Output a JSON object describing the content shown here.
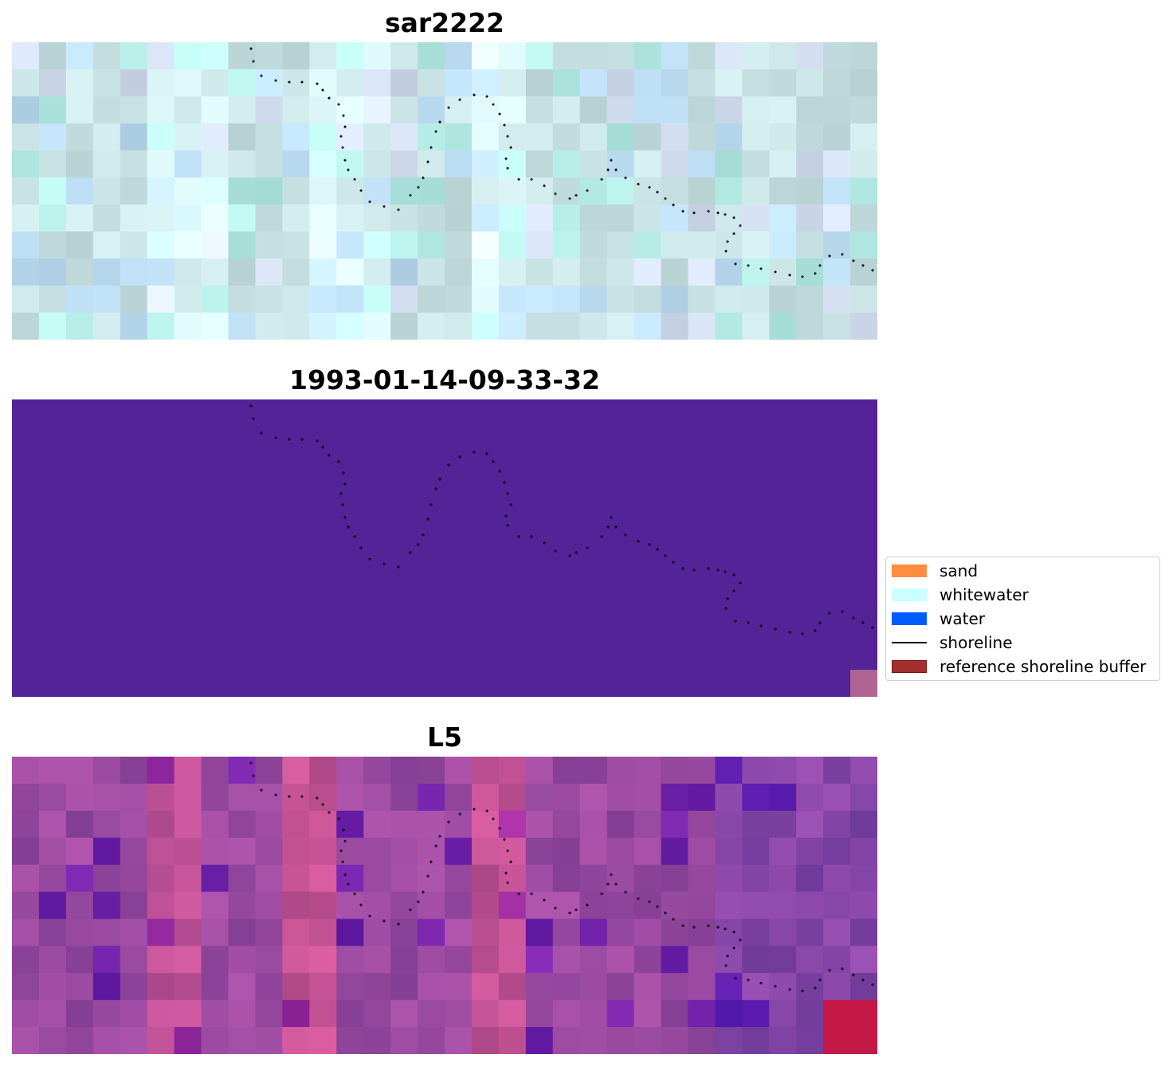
{
  "panels": [
    {
      "title": "sar2222",
      "style": "sar"
    },
    {
      "title": "1993-01-14-09-33-32",
      "style": "class"
    },
    {
      "title": "L5",
      "style": "l5"
    }
  ],
  "legend": {
    "items": [
      {
        "label": "sand",
        "color": "#ff8c3f",
        "kind": "patch"
      },
      {
        "label": "whitewater",
        "color": "#ccffff",
        "kind": "patch"
      },
      {
        "label": "water",
        "color": "#005cff",
        "kind": "patch"
      },
      {
        "label": "shoreline",
        "color": "#000000",
        "kind": "line"
      },
      {
        "label": "reference shoreline buffer",
        "color": "#a12f2f",
        "kind": "patch",
        "edge": "#7a1010"
      }
    ]
  },
  "colors": {
    "class_background": "#532397",
    "class_corner": "#b06493",
    "sar_base": "#c8e2e4",
    "l5_base": "#9a4aa1",
    "shoreline_dots": "#000000"
  }
}
